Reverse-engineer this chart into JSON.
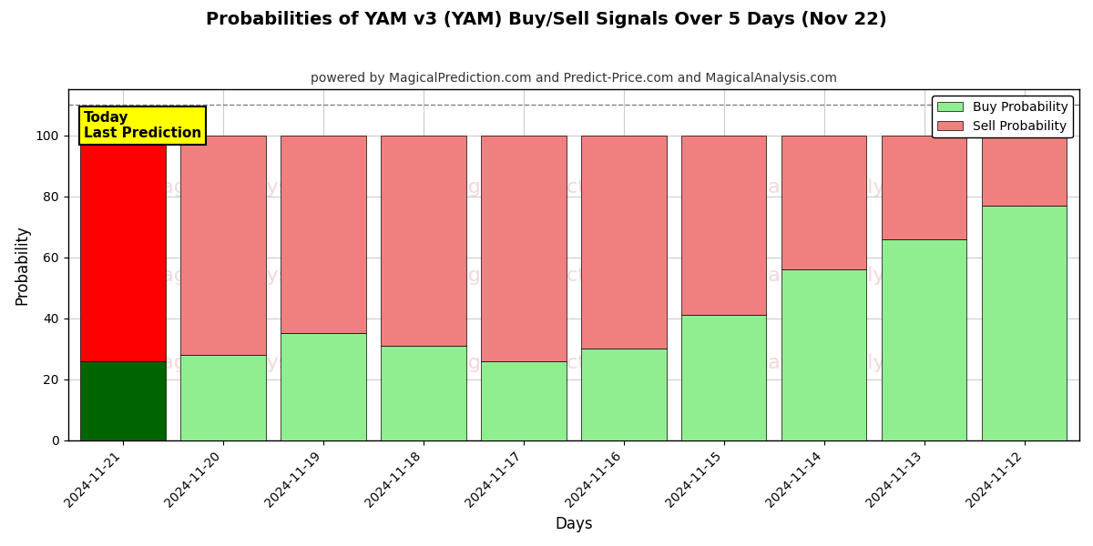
{
  "title": "Probabilities of YAM v3 (YAM) Buy/Sell Signals Over 5 Days (Nov 22)",
  "subtitle": "powered by MagicalPrediction.com and Predict-Price.com and MagicalAnalysis.com",
  "xlabel": "Days",
  "ylabel": "Probability",
  "categories": [
    "2024-11-21",
    "2024-11-20",
    "2024-11-19",
    "2024-11-18",
    "2024-11-17",
    "2024-11-16",
    "2024-11-15",
    "2024-11-14",
    "2024-11-13",
    "2024-11-12"
  ],
  "buy_values": [
    26,
    28,
    35,
    31,
    26,
    30,
    41,
    56,
    66,
    77
  ],
  "sell_values": [
    74,
    72,
    65,
    69,
    74,
    70,
    59,
    44,
    34,
    23
  ],
  "today_buy_color": "#006400",
  "today_sell_color": "#FF0000",
  "buy_color": "#90EE90",
  "sell_color": "#F08080",
  "today_label_bg": "#FFFF00",
  "today_label_text": "Today\nLast Prediction",
  "legend_buy": "Buy Probability",
  "legend_sell": "Sell Probability",
  "ylim": [
    0,
    115
  ],
  "yticks": [
    0,
    20,
    40,
    60,
    80,
    100
  ],
  "dashed_line_y": 110,
  "bar_width": 0.85,
  "background_color": "#ffffff",
  "grid_color": "#cccccc"
}
